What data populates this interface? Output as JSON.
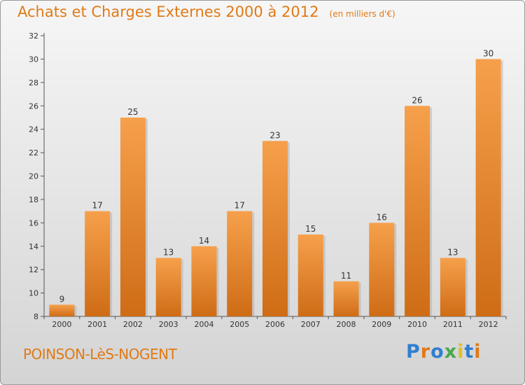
{
  "header": {
    "title": "Achats et Charges Externes 2000 à 2012",
    "subtitle": "(en milliers d'€)"
  },
  "footer": {
    "place": "POINSON-LèS-NOGENT",
    "logo": "Proxiti",
    "logo_colors": [
      "#2f7fd0",
      "#e07a16",
      "#2f7fd0",
      "#48a84a",
      "#e0c020",
      "#2f7fd0",
      "#e07a16"
    ]
  },
  "colors": {
    "bar_light": "#f6a04b",
    "bar_dark": "#cf6c16",
    "text_accent": "#e07a16"
  },
  "chart_data": {
    "type": "bar",
    "categories": [
      "2000",
      "2001",
      "2002",
      "2003",
      "2004",
      "2005",
      "2006",
      "2007",
      "2008",
      "2009",
      "2010",
      "2011",
      "2012"
    ],
    "values": [
      9,
      17,
      25,
      13,
      14,
      17,
      23,
      15,
      11,
      16,
      26,
      13,
      30
    ],
    "ylim": [
      8,
      32
    ],
    "yticks": [
      8,
      10,
      12,
      14,
      16,
      18,
      20,
      22,
      24,
      26,
      28,
      30,
      32
    ],
    "grid": false,
    "data_labels": true
  }
}
